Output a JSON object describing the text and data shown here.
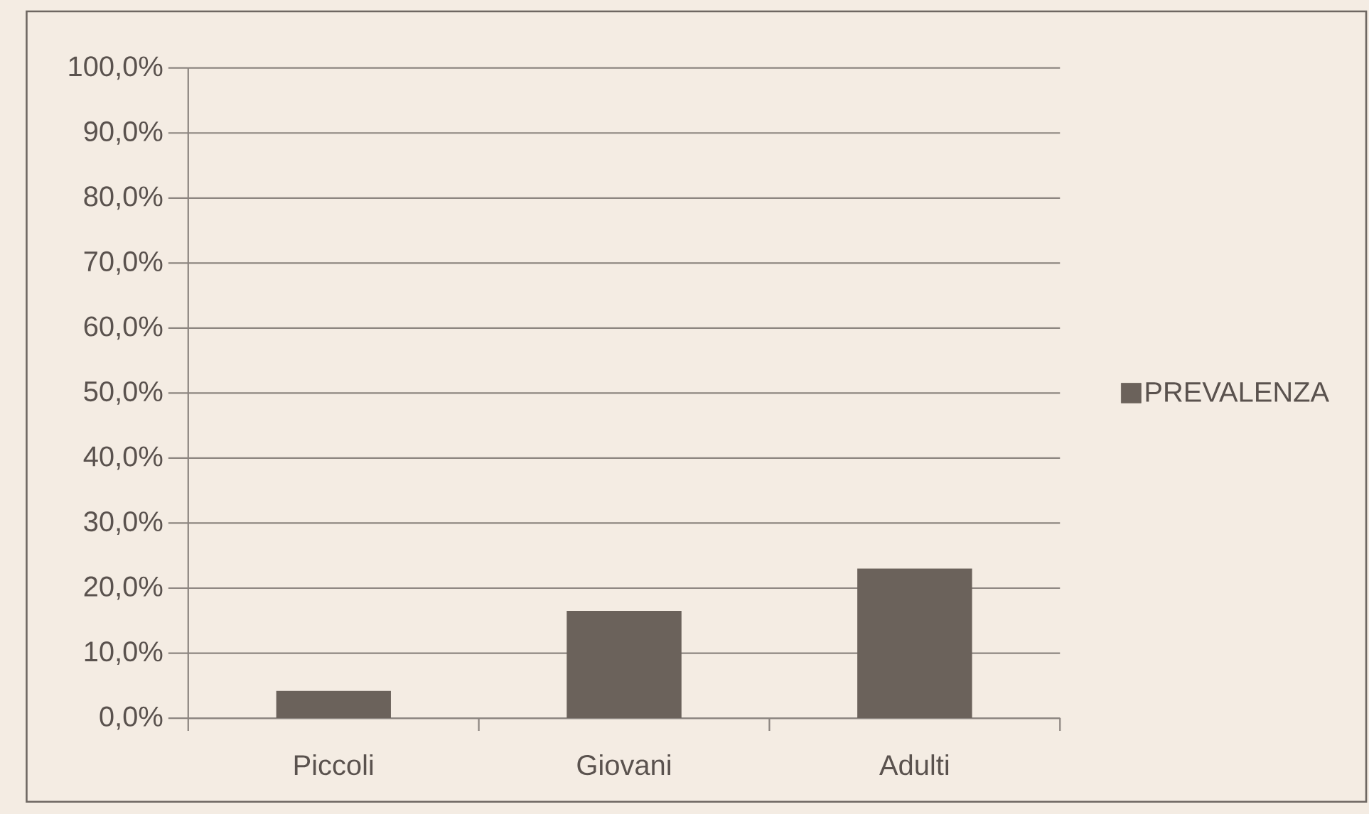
{
  "chart_data": {
    "type": "bar",
    "categories": [
      "Piccoli",
      "Giovani",
      "Adulti"
    ],
    "series": [
      {
        "name": "PREVALENZA",
        "color": "#6b625b",
        "values": [
          4.2,
          16.5,
          23
        ]
      }
    ],
    "ylim": [
      0,
      100
    ],
    "yticks": [
      {
        "value": 0,
        "label": "0,0%"
      },
      {
        "value": 10,
        "label": "10,0%"
      },
      {
        "value": 20,
        "label": "20,0%"
      },
      {
        "value": 30,
        "label": "30,0%"
      },
      {
        "value": 40,
        "label": "40,0%"
      },
      {
        "value": 50,
        "label": "50,0%"
      },
      {
        "value": 60,
        "label": "60,0%"
      },
      {
        "value": 70,
        "label": "70,0%"
      },
      {
        "value": 80,
        "label": "80,0%"
      },
      {
        "value": 90,
        "label": "90,0%"
      },
      {
        "value": 100,
        "label": "100,0%"
      }
    ],
    "grid": "y",
    "legend": "right"
  }
}
